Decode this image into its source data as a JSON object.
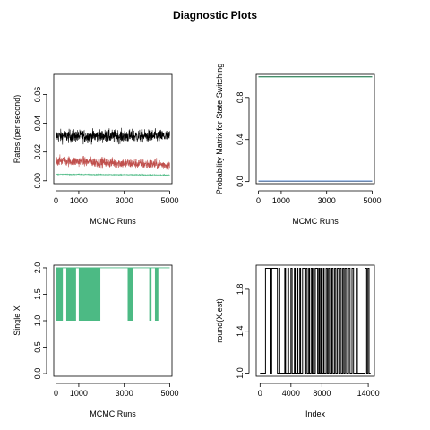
{
  "title": "Diagnostic Plots",
  "chart_data": [
    {
      "type": "line",
      "xlabel": "MCMC Runs",
      "ylabel": "Rates (per second)",
      "xlim": [
        -100,
        5100
      ],
      "ylim": [
        -0.002,
        0.074
      ],
      "xticks": [
        "0",
        "1000",
        "3000",
        "5000"
      ],
      "xtick_values": [
        0,
        1000,
        3000,
        5000
      ],
      "yticks": [
        "0.00",
        "0.02",
        "0.04",
        "0.06"
      ],
      "ytick_values": [
        0,
        0.02,
        0.04,
        0.06
      ],
      "grid": false,
      "series": [
        {
          "color": "#000000",
          "n": 5000,
          "mean": 0.031,
          "spread": 0.0045
        },
        {
          "color": "#c0504d",
          "n": 5000,
          "mean": 0.014,
          "spread": 0.0035,
          "trend": -0.003
        },
        {
          "color": "#4cba84",
          "n": 5000,
          "mean": 0.0045,
          "spread": 0.0003,
          "trend": -0.0005
        }
      ]
    },
    {
      "type": "line",
      "xlabel": "MCMC Runs",
      "ylabel": "Probability Matrix for State Switching",
      "xlim": [
        -100,
        5100
      ],
      "ylim": [
        -0.02,
        1.02
      ],
      "xticks": [
        "0",
        "1000",
        "3000",
        "5000"
      ],
      "xtick_values": [
        0,
        1000,
        3000,
        5000
      ],
      "yticks": [
        "0.0",
        "0.4",
        "0.8"
      ],
      "ytick_values": [
        0,
        0.4,
        0.8
      ],
      "grid": false,
      "series": [
        {
          "color": "#000000",
          "values_const": 0.998
        },
        {
          "color": "#4cba84",
          "values_const": 0.995
        },
        {
          "color": "#000000",
          "values_const": 0.003
        },
        {
          "color": "#5b8ed6",
          "values_const": 0.006
        }
      ]
    },
    {
      "type": "line",
      "xlabel": "MCMC Runs",
      "ylabel": "Single X",
      "xlim": [
        -100,
        5100
      ],
      "ylim": [
        -0.05,
        2.05
      ],
      "xticks": [
        "0",
        "1000",
        "3000",
        "5000"
      ],
      "xtick_values": [
        0,
        1000,
        3000,
        5000
      ],
      "yticks": [
        "0.0",
        "0.5",
        "1.0",
        "1.5",
        "2.0"
      ],
      "ytick_values": [
        0,
        0.5,
        1,
        1.5,
        2
      ],
      "grid": false,
      "low_value": 1,
      "high_value": 2,
      "switching_blocks": [
        [
          0,
          300
        ],
        [
          450,
          880
        ],
        [
          1000,
          1950
        ],
        [
          3150,
          3400
        ],
        [
          4100,
          4200
        ],
        [
          4350,
          4500
        ]
      ],
      "series": [
        {
          "color": "#4cba84"
        }
      ]
    },
    {
      "type": "line",
      "xlabel": "Index",
      "ylabel": "round(X.est)",
      "xlim": [
        -500,
        14800
      ],
      "ylim": [
        0.97,
        2.03
      ],
      "xticks": [
        "0",
        "4000",
        "8000",
        "14000"
      ],
      "xtick_values": [
        0,
        4000,
        8000,
        14000
      ],
      "yticks": [
        "1.0",
        "1.4",
        "1.8"
      ],
      "ytick_values": [
        1,
        1.4,
        1.8
      ],
      "grid": false,
      "low_value": 1,
      "high_value": 2,
      "switch_points": [
        700,
        1300,
        1500,
        2250,
        2450,
        2550,
        3200,
        3300,
        3600,
        3700,
        4000,
        4150,
        4450,
        4550,
        4800,
        4900,
        5150,
        5250,
        5500,
        5800,
        5950,
        6100,
        6300,
        6400,
        6600,
        6750,
        6900,
        7000,
        7150,
        7450,
        7600,
        7700,
        7850,
        7950,
        8200,
        8300,
        8550,
        8700,
        8850,
        9000,
        9300,
        9450,
        9650,
        9800,
        10000,
        10200,
        10350,
        10500,
        10700,
        10850,
        11000,
        11200,
        11450,
        11650,
        11900,
        12100,
        12450,
        12600,
        13600,
        13800,
        13950,
        14100
      ],
      "series": [
        {
          "color": "#000000"
        }
      ]
    }
  ]
}
